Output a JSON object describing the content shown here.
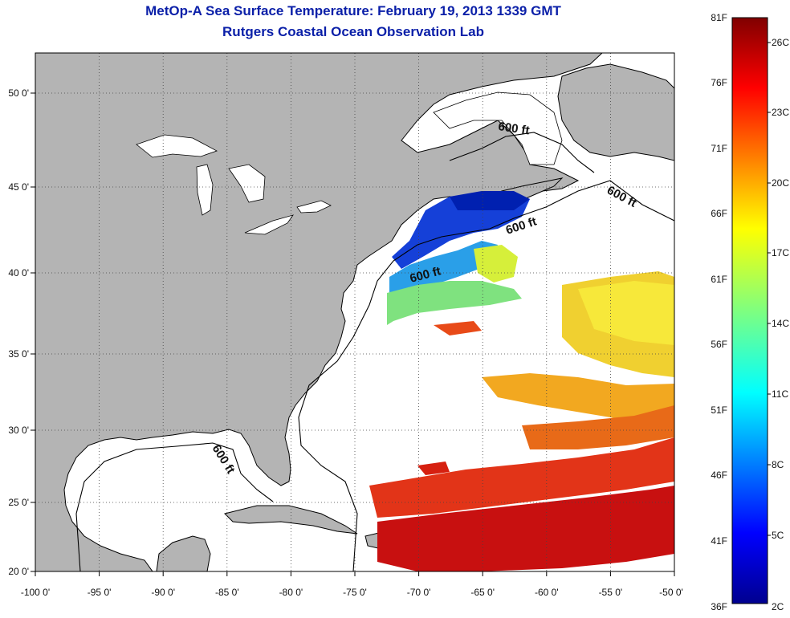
{
  "title": "MetOp-A Sea Surface Temperature:  February 19, 2013 1339 GMT",
  "subtitle": "Rutgers Coastal Ocean Observation Lab",
  "x_ticks": [
    "-100 0'",
    "-95 0'",
    "-90 0'",
    "-85 0'",
    "-80 0'",
    "-75 0'",
    "-70 0'",
    "-65 0'",
    "-60 0'",
    "-55 0'",
    "-50 0'"
  ],
  "y_ticks": [
    "50 0'",
    "45 0'",
    "40 0'",
    "35 0'",
    "30 0'",
    "25 0'",
    "20 0'"
  ],
  "contour_labels": [
    "600 ft",
    "600 ft",
    "600 ft",
    "600 ft",
    "600 ft"
  ],
  "colorbar": {
    "fahrenheit": [
      "81F",
      "76F",
      "71F",
      "66F",
      "61F",
      "56F",
      "51F",
      "46F",
      "41F",
      "36F"
    ],
    "celsius": [
      "26C",
      "23C",
      "20C",
      "17C",
      "14C",
      "11C",
      "8C",
      "5C",
      "2C"
    ]
  },
  "colors": {
    "title": "#0a1fa8",
    "land": "#b4b4b4",
    "ocean": "#ffffff",
    "grid": "#444444"
  }
}
